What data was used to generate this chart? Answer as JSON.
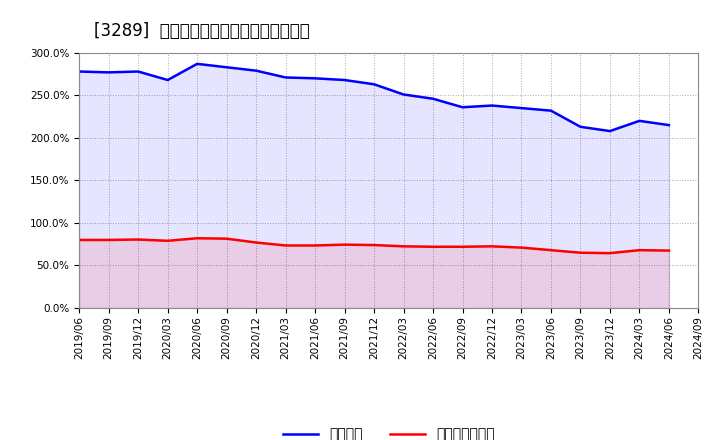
{
  "title": "[3289]  固定比率、固定長期適合率の推移",
  "blue_label": "固定比率",
  "red_label": "固定長期適合率",
  "blue_color": "#0000ff",
  "red_color": "#ff0000",
  "background_color": "#ffffff",
  "grid_color": "#aaaaaa",
  "dates": [
    "2019/06",
    "2019/09",
    "2019/12",
    "2020/03",
    "2020/06",
    "2020/09",
    "2020/12",
    "2021/03",
    "2021/06",
    "2021/09",
    "2021/12",
    "2022/03",
    "2022/06",
    "2022/09",
    "2022/12",
    "2023/03",
    "2023/06",
    "2023/09",
    "2023/12",
    "2024/03",
    "2024/06"
  ],
  "blue_values": [
    278.0,
    277.0,
    278.0,
    268.0,
    287.0,
    283.0,
    279.0,
    271.0,
    270.0,
    268.0,
    263.0,
    251.0,
    246.0,
    236.0,
    238.0,
    235.0,
    232.0,
    213.0,
    208.0,
    220.0,
    215.0
  ],
  "red_values": [
    80.0,
    80.0,
    80.5,
    79.0,
    82.0,
    81.5,
    77.0,
    73.5,
    73.5,
    74.5,
    74.0,
    72.5,
    72.0,
    72.0,
    72.5,
    71.0,
    68.0,
    65.0,
    64.5,
    68.0,
    67.5
  ],
  "xtick_labels": [
    "2019/06",
    "2019/09",
    "2019/12",
    "2020/03",
    "2020/06",
    "2020/09",
    "2020/12",
    "2021/03",
    "2021/06",
    "2021/09",
    "2021/12",
    "2022/03",
    "2022/06",
    "2022/09",
    "2022/12",
    "2023/03",
    "2023/06",
    "2023/09",
    "2023/12",
    "2024/03",
    "2024/06",
    "2024/09"
  ],
  "ylim": [
    0,
    300
  ],
  "yticks": [
    0,
    50,
    100,
    150,
    200,
    250,
    300
  ],
  "title_fontsize": 12,
  "tick_fontsize": 7.5,
  "legend_fontsize": 10,
  "line_width": 1.8
}
